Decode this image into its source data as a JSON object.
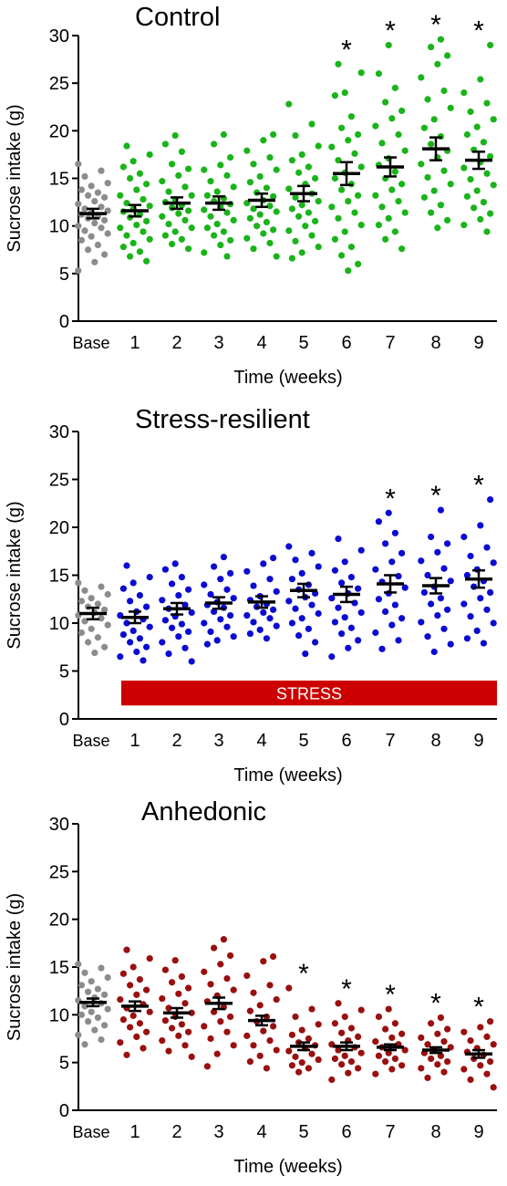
{
  "axis_label_y": "Sucrose intake (g)",
  "axis_label_x": "Time (weeks)",
  "stress_bar_label": "STRESS",
  "colors": {
    "base": "#8c8c8c",
    "control": "#1ab41a",
    "resilient": "#0a0ad2",
    "anhedonic": "#9a0f0f",
    "stress_bar": "#cc0000",
    "mean_marker": "#000000"
  },
  "chart_data": [
    {
      "type": "scatter",
      "title": "Control",
      "categories": [
        "Base",
        "1",
        "2",
        "3",
        "4",
        "5",
        "6",
        "7",
        "8",
        "9"
      ],
      "ylim": [
        0,
        30
      ],
      "yticks": [
        0,
        5,
        10,
        15,
        20,
        25,
        30
      ],
      "xlabel": "Time (weeks)",
      "ylabel": "Sucrose intake (g)",
      "means": [
        11.3,
        11.6,
        12.4,
        12.4,
        12.7,
        13.4,
        15.5,
        16.2,
        18.1,
        16.9
      ],
      "sem": [
        0.5,
        0.6,
        0.6,
        0.7,
        0.7,
        0.8,
        1.2,
        1.0,
        1.2,
        0.9
      ],
      "significant": [
        false,
        false,
        false,
        false,
        false,
        false,
        true,
        true,
        true,
        true
      ],
      "points": [
        [
          16.5,
          15.8,
          15.2,
          14.5,
          14.2,
          13.8,
          13.5,
          13.2,
          13.0,
          12.6,
          12.3,
          12.0,
          11.8,
          11.6,
          11.4,
          11.2,
          11.0,
          10.8,
          10.6,
          10.3,
          10.0,
          9.8,
          9.5,
          9.2,
          8.9,
          8.5,
          8.0,
          7.5,
          7.0,
          6.2,
          5.3
        ],
        [
          18.4,
          17.5,
          16.8,
          16.2,
          15.5,
          15.0,
          14.4,
          13.8,
          13.2,
          12.8,
          12.4,
          12.1,
          11.8,
          11.5,
          11.2,
          10.9,
          10.5,
          10.1,
          9.8,
          9.4,
          9.0,
          8.6,
          8.2,
          7.8,
          7.3,
          6.8,
          6.3
        ],
        [
          19.5,
          18.6,
          17.8,
          16.5,
          16.0,
          15.3,
          14.7,
          14.1,
          13.6,
          13.2,
          12.8,
          12.5,
          12.2,
          11.9,
          11.6,
          11.3,
          11.0,
          10.6,
          10.2,
          9.8,
          9.4,
          9.0,
          8.6,
          8.1,
          7.6
        ],
        [
          19.6,
          18.6,
          17.2,
          16.4,
          15.9,
          15.3,
          14.7,
          14.1,
          13.6,
          13.2,
          12.9,
          12.6,
          12.3,
          12.0,
          11.7,
          11.4,
          11.0,
          10.6,
          10.2,
          9.8,
          9.4,
          9.0,
          8.5,
          8.0,
          7.2,
          6.8
        ],
        [
          19.6,
          19.0,
          17.9,
          17.2,
          16.5,
          15.9,
          15.2,
          14.6,
          14.0,
          13.5,
          13.1,
          12.7,
          12.4,
          12.1,
          11.8,
          11.5,
          11.2,
          10.8,
          10.4,
          10.0,
          9.6,
          9.2,
          8.7,
          8.2,
          7.6,
          6.8
        ],
        [
          22.8,
          20.7,
          19.5,
          18.4,
          17.5,
          16.9,
          16.2,
          15.6,
          15.0,
          14.4,
          13.9,
          13.4,
          13.0,
          12.6,
          12.2,
          11.8,
          11.4,
          11.0,
          10.5,
          10.0,
          9.5,
          9.0,
          8.4,
          7.8,
          7.2,
          6.6
        ],
        [
          27.0,
          26.1,
          24.0,
          23.7,
          21.5,
          20.3,
          19.6,
          19.0,
          18.3,
          17.6,
          16.9,
          16.2,
          15.6,
          15.0,
          14.4,
          13.8,
          13.2,
          12.6,
          12.0,
          11.4,
          10.8,
          10.1,
          9.4,
          8.6,
          7.8,
          6.9,
          6.0,
          5.3
        ],
        [
          29.0,
          26.0,
          24.5,
          23.0,
          22.1,
          21.3,
          20.5,
          19.6,
          18.7,
          17.9,
          17.1,
          16.4,
          15.7,
          15.0,
          14.4,
          13.8,
          13.2,
          12.6,
          12.0,
          11.4,
          10.8,
          10.1,
          9.4,
          8.6,
          7.6
        ],
        [
          29.6,
          28.8,
          27.9,
          27.0,
          25.6,
          24.2,
          23.3,
          22.4,
          21.2,
          20.3,
          19.4,
          18.6,
          17.9,
          17.2,
          16.5,
          15.8,
          15.1,
          14.4,
          13.7,
          13.0,
          12.2,
          11.4,
          10.6,
          9.8
        ],
        [
          29.0,
          25.4,
          24.0,
          22.9,
          22.0,
          21.2,
          20.4,
          19.6,
          18.8,
          18.0,
          17.3,
          16.7,
          16.1,
          15.5,
          14.9,
          14.3,
          13.7,
          13.1,
          12.5,
          11.9,
          11.3,
          10.7,
          10.1,
          9.4
        ]
      ]
    },
    {
      "type": "scatter",
      "title": "Stress-resilient",
      "categories": [
        "Base",
        "1",
        "2",
        "3",
        "4",
        "5",
        "6",
        "7",
        "8",
        "9"
      ],
      "ylim": [
        0,
        30
      ],
      "yticks": [
        0,
        5,
        10,
        15,
        20,
        25,
        30
      ],
      "xlabel": "Time (weeks)",
      "ylabel": "Sucrose intake (g)",
      "means": [
        11.0,
        10.6,
        11.5,
        12.1,
        12.2,
        13.4,
        13.0,
        14.1,
        13.9,
        14.6
      ],
      "sem": [
        0.6,
        0.6,
        0.6,
        0.6,
        0.6,
        0.7,
        0.8,
        0.9,
        0.8,
        0.9
      ],
      "significant": [
        false,
        false,
        false,
        false,
        false,
        false,
        false,
        true,
        true,
        true
      ],
      "stress_weeks": [
        1,
        9
      ],
      "points": [
        [
          14.2,
          13.8,
          13.4,
          13.0,
          12.6,
          12.3,
          12.0,
          11.7,
          11.4,
          11.1,
          10.8,
          10.5,
          10.2,
          9.8,
          9.4,
          9.0,
          8.5,
          8.0,
          7.5,
          6.9
        ],
        [
          16.0,
          14.8,
          14.2,
          13.6,
          12.9,
          12.3,
          11.7,
          11.2,
          10.8,
          10.4,
          10.0,
          9.6,
          9.2,
          8.8,
          8.4,
          8.0,
          7.5,
          7.0,
          6.5,
          6.1
        ],
        [
          16.2,
          15.6,
          14.8,
          14.1,
          13.5,
          12.9,
          12.4,
          11.9,
          11.5,
          11.1,
          10.7,
          10.3,
          9.9,
          9.5,
          9.1,
          8.6,
          8.0,
          7.4,
          6.8,
          6.0
        ],
        [
          16.9,
          15.9,
          15.2,
          14.6,
          14.0,
          13.5,
          13.0,
          12.6,
          12.2,
          11.9,
          11.6,
          11.2,
          10.8,
          10.4,
          10.0,
          9.6,
          9.1,
          8.6,
          8.2,
          7.8
        ],
        [
          16.8,
          16.2,
          15.4,
          14.6,
          13.9,
          13.3,
          12.8,
          12.4,
          12.0,
          11.7,
          11.4,
          11.1,
          10.8,
          10.5,
          10.1,
          9.7,
          9.3,
          8.9,
          8.4
        ],
        [
          18.0,
          17.3,
          16.6,
          15.9,
          15.2,
          14.6,
          14.0,
          13.5,
          13.1,
          12.7,
          12.3,
          11.9,
          11.5,
          11.0,
          10.5,
          10.0,
          9.4,
          8.7,
          8.0,
          6.8
        ],
        [
          18.8,
          17.6,
          16.4,
          15.5,
          14.8,
          14.2,
          13.6,
          13.1,
          12.6,
          12.1,
          11.6,
          11.1,
          10.6,
          10.1,
          9.5,
          8.9,
          8.2,
          7.4,
          6.5
        ],
        [
          21.5,
          20.6,
          19.4,
          18.3,
          17.3,
          16.4,
          15.6,
          14.9,
          14.3,
          13.7,
          13.1,
          12.5,
          11.9,
          11.2,
          10.5,
          9.8,
          9.0,
          8.2,
          7.3
        ],
        [
          21.8,
          19.0,
          18.3,
          17.4,
          16.5,
          15.7,
          15.0,
          14.4,
          13.8,
          13.2,
          12.6,
          12.0,
          11.4,
          10.8,
          10.1,
          9.4,
          8.6,
          7.8,
          7.0
        ],
        [
          22.9,
          20.2,
          19.0,
          17.9,
          17.0,
          16.3,
          15.6,
          15.0,
          14.4,
          13.8,
          13.2,
          12.6,
          12.0,
          11.4,
          10.7,
          10.0,
          9.2,
          8.4,
          7.9
        ]
      ]
    },
    {
      "type": "scatter",
      "title": "Anhedonic",
      "categories": [
        "Base",
        "1",
        "2",
        "3",
        "4",
        "5",
        "6",
        "7",
        "8",
        "9"
      ],
      "ylim": [
        0,
        30
      ],
      "yticks": [
        0,
        5,
        10,
        15,
        20,
        25,
        30
      ],
      "xlabel": "Time (weeks)",
      "ylabel": "Sucrose intake (g)",
      "means": [
        11.3,
        10.9,
        10.2,
        11.2,
        9.4,
        6.7,
        6.7,
        6.6,
        6.3,
        5.9
      ],
      "sem": [
        0.4,
        0.5,
        0.5,
        0.6,
        0.5,
        0.4,
        0.4,
        0.3,
        0.3,
        0.4
      ],
      "significant": [
        false,
        false,
        false,
        false,
        false,
        true,
        true,
        true,
        true,
        true
      ],
      "points": [
        [
          15.3,
          14.9,
          14.4,
          13.9,
          13.5,
          13.1,
          12.7,
          12.4,
          12.1,
          11.8,
          11.5,
          11.2,
          10.9,
          10.6,
          10.3,
          10.0,
          9.7,
          9.3,
          8.9,
          8.4,
          7.9,
          7.4,
          6.9
        ],
        [
          16.8,
          15.9,
          15.0,
          14.3,
          13.7,
          13.1,
          12.6,
          12.1,
          11.6,
          11.1,
          10.7,
          10.3,
          9.9,
          9.5,
          9.1,
          8.7,
          8.2,
          7.7,
          7.1,
          6.5,
          5.8
        ],
        [
          15.7,
          14.7,
          14.0,
          13.4,
          12.8,
          12.2,
          11.7,
          11.2,
          10.7,
          10.2,
          9.8,
          9.4,
          9.0,
          8.6,
          8.2,
          7.8,
          7.3,
          6.8,
          6.2,
          5.6
        ],
        [
          17.9,
          17.0,
          16.2,
          15.3,
          14.5,
          13.8,
          13.2,
          12.6,
          12.0,
          11.4,
          10.8,
          10.3,
          9.8,
          9.3,
          8.8,
          8.2,
          7.5,
          6.8,
          5.9,
          4.6
        ],
        [
          16.1,
          15.6,
          14.1,
          13.1,
          12.3,
          11.6,
          11.0,
          10.4,
          9.8,
          9.3,
          8.8,
          8.3,
          7.8,
          7.3,
          6.8,
          6.3,
          5.7,
          5.1,
          4.4
        ],
        [
          12.8,
          10.6,
          9.8,
          9.0,
          8.4,
          7.9,
          7.5,
          7.1,
          6.8,
          6.5,
          6.2,
          5.9,
          5.6,
          5.3,
          5.0,
          4.7,
          4.4,
          4.0
        ],
        [
          11.2,
          10.5,
          9.8,
          9.1,
          8.6,
          8.1,
          7.7,
          7.3,
          6.9,
          6.6,
          6.3,
          6.0,
          5.7,
          5.4,
          5.1,
          4.8,
          4.4,
          3.9,
          3.2
        ],
        [
          10.6,
          9.8,
          9.1,
          8.5,
          8.0,
          7.6,
          7.2,
          6.9,
          6.6,
          6.3,
          6.0,
          5.7,
          5.4,
          5.1,
          4.7,
          4.3,
          3.8
        ],
        [
          9.7,
          9.1,
          8.5,
          8.0,
          7.6,
          7.2,
          6.9,
          6.6,
          6.3,
          6.0,
          5.7,
          5.4,
          5.1,
          4.8,
          4.4,
          4.0,
          3.4
        ],
        [
          9.3,
          8.7,
          8.2,
          7.7,
          7.3,
          6.9,
          6.5,
          6.1,
          5.8,
          5.4,
          5.1,
          4.7,
          4.3,
          3.8,
          3.2,
          2.4
        ]
      ]
    }
  ]
}
